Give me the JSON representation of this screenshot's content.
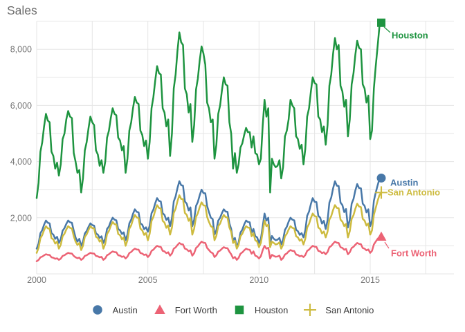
{
  "title": "Sales",
  "colors": {
    "austin": "#4878a8",
    "fort_worth": "#ec6375",
    "houston": "#1e9440",
    "san_antonio": "#cdbb3f",
    "grid": "#e5e5e5",
    "axis_text": "#757575",
    "title_text": "#6f6f6f",
    "legend_text": "#3a3a3a"
  },
  "axes": {
    "y_tick_labels": [
      "2,000",
      "4,000",
      "6,000",
      "8,000"
    ],
    "y_tick_values": [
      2000,
      4000,
      6000,
      8000
    ],
    "x_tick_labels": [
      "2000",
      "2005",
      "2010",
      "2015"
    ],
    "x_tick_values": [
      2000,
      2005,
      2010,
      2015
    ]
  },
  "legend": [
    {
      "key": "austin",
      "label": "Austin",
      "shape": "circle",
      "color": "#4878a8"
    },
    {
      "key": "fort_worth",
      "label": "Fort Worth",
      "shape": "triangle",
      "color": "#ec6375"
    },
    {
      "key": "houston",
      "label": "Houston",
      "shape": "square",
      "color": "#1e9440"
    },
    {
      "key": "san_antonio",
      "label": "San Antonio",
      "shape": "plus",
      "color": "#cdbb3f"
    }
  ],
  "chart_data": {
    "type": "line",
    "title": "Sales",
    "xlabel": "",
    "ylabel": "Sales",
    "x_start": "2000-01",
    "x_end": "2015-07",
    "x_interval": "month",
    "n_points": 187,
    "xlim": [
      2000,
      2017.5
    ],
    "ylim": [
      0,
      9000
    ],
    "x_grid_step_years": 2.5,
    "y_grid_step": 1000,
    "grid": true,
    "legend_position": "bottom",
    "series": [
      {
        "key": "austin",
        "name": "Austin",
        "marker": "circle",
        "color": "#4878a8",
        "values": [
          900,
          1080,
          1450,
          1560,
          1750,
          1900,
          1820,
          1800,
          1450,
          1400,
          1250,
          1320,
          1100,
          1240,
          1540,
          1630,
          1780,
          1900,
          1840,
          1820,
          1540,
          1300,
          1150,
          1250,
          1000,
          1150,
          1440,
          1530,
          1680,
          1800,
          1740,
          1720,
          1440,
          1400,
          1280,
          1340,
          1100,
          1260,
          1600,
          1690,
          1870,
          2000,
          1930,
          1910,
          1600,
          1550,
          1420,
          1480,
          1200,
          1400,
          1800,
          1930,
          2140,
          2300,
          2210,
          2190,
          1800,
          1750,
          1590,
          1660,
          1500,
          1720,
          2160,
          2290,
          2520,
          2700,
          2600,
          2580,
          2160,
          2100,
          1920,
          2000,
          1700,
          1990,
          2580,
          2760,
          3060,
          3300,
          3160,
          3140,
          2580,
          2500,
          2260,
          2370,
          1700,
          1930,
          2420,
          2560,
          2800,
          3000,
          2880,
          2870,
          2420,
          2200,
          2000,
          1950,
          1400,
          1560,
          1900,
          2000,
          2170,
          2300,
          2220,
          2210,
          1800,
          1600,
          1200,
          1280,
          950,
          1120,
          1470,
          1580,
          1760,
          1900,
          1850,
          1840,
          1470,
          1600,
          1350,
          1300,
          1100,
          1250,
          1700,
          2150,
          1900,
          2000,
          1100,
          1350,
          1250,
          1200,
          1220,
          1280,
          1050,
          1220,
          1570,
          1680,
          1860,
          2000,
          1930,
          1910,
          1570,
          1520,
          1390,
          1450,
          1300,
          1550,
          2070,
          2220,
          2490,
          2700,
          2570,
          2560,
          2070,
          2000,
          1790,
          1890,
          1600,
          1910,
          2540,
          2720,
          3050,
          3300,
          3140,
          3130,
          2540,
          2450,
          2200,
          2310,
          1650,
          1930,
          2500,
          2670,
          2970,
          3200,
          3060,
          3050,
          2500,
          2420,
          2190,
          2300,
          1700,
          1900,
          2600,
          2900,
          3150,
          3380,
          3413
        ]
      },
      {
        "key": "fort_worth",
        "name": "Fort Worth",
        "marker": "triangle",
        "color": "#ec6375",
        "values": [
          450,
          495,
          590,
          615,
          660,
          700,
          680,
          675,
          590,
          575,
          540,
          555,
          500,
          545,
          640,
          665,
          710,
          750,
          730,
          725,
          640,
          590,
          560,
          580,
          500,
          545,
          640,
          665,
          710,
          750,
          730,
          725,
          640,
          625,
          590,
          605,
          500,
          555,
          665,
          700,
          755,
          800,
          775,
          770,
          665,
          650,
          605,
          625,
          550,
          615,
          745,
          780,
          850,
          900,
          870,
          865,
          745,
          725,
          675,
          695,
          600,
          670,
          820,
          865,
          940,
          1000,
          970,
          960,
          820,
          800,
          740,
          770,
          650,
          730,
          900,
          945,
          1030,
          1100,
          1060,
          1050,
          900,
          875,
          810,
          840,
          650,
          740,
          925,
          980,
          1075,
          1150,
          1110,
          1100,
          925,
          850,
          770,
          740,
          600,
          665,
          795,
          830,
          900,
          950,
          920,
          915,
          790,
          700,
          560,
          600,
          500,
          570,
          720,
          765,
          840,
          900,
          870,
          860,
          720,
          800,
          650,
          620,
          550,
          630,
          850,
          1000,
          900,
          930,
          550,
          680,
          640,
          610,
          620,
          650,
          500,
          565,
          690,
          730,
          800,
          850,
          820,
          815,
          690,
          675,
          625,
          645,
          600,
          670,
          820,
          865,
          940,
          1000,
          970,
          960,
          820,
          800,
          740,
          770,
          700,
          780,
          950,
          995,
          1080,
          1150,
          1110,
          1100,
          950,
          925,
          860,
          890,
          700,
          770,
          920,
          965,
          1040,
          1100,
          1070,
          1060,
          920,
          900,
          840,
          870,
          750,
          820,
          1050,
          1150,
          1250,
          1310,
          1324
        ]
      },
      {
        "key": "houston",
        "name": "Houston",
        "marker": "square",
        "color": "#1e9440",
        "values": [
          2700,
          3240,
          4350,
          4680,
          5250,
          5700,
          5460,
          5400,
          4350,
          4200,
          3750,
          3960,
          3500,
          3900,
          4800,
          5000,
          5500,
          5800,
          5600,
          5550,
          4300,
          4000,
          3600,
          3700,
          2900,
          3400,
          4400,
          4700,
          5200,
          5600,
          5400,
          5300,
          4400,
          4250,
          3850,
          4050,
          3600,
          4000,
          4850,
          5100,
          5550,
          5900,
          5700,
          5650,
          4850,
          4750,
          4400,
          4550,
          3600,
          4100,
          5100,
          5400,
          5900,
          6300,
          6100,
          6050,
          5100,
          4950,
          4550,
          4750,
          4100,
          4700,
          5900,
          6300,
          6900,
          7400,
          7150,
          7100,
          5900,
          5750,
          5250,
          5500,
          4200,
          5000,
          6600,
          7100,
          7950,
          8600,
          8250,
          8150,
          6600,
          6400,
          5750,
          6050,
          4700,
          5300,
          6570,
          6950,
          7600,
          8100,
          7850,
          7450,
          6100,
          5900,
          5400,
          5500,
          4100,
          4600,
          5700,
          6000,
          6550,
          7000,
          6750,
          6700,
          5400,
          5000,
          3750,
          4300,
          3600,
          3900,
          4500,
          4650,
          4950,
          5200,
          5050,
          5050,
          4500,
          4900,
          4300,
          4250,
          3900,
          4100,
          5300,
          6200,
          5600,
          5900,
          2900,
          4100,
          3900,
          3800,
          3850,
          4050,
          3400,
          3800,
          4900,
          5100,
          5500,
          6200,
          6000,
          5900,
          4900,
          4800,
          4450,
          4600,
          3900,
          4450,
          5600,
          5900,
          6500,
          7000,
          6800,
          6750,
          5600,
          5500,
          5050,
          5250,
          4600,
          5300,
          6700,
          7100,
          7850,
          8400,
          8000,
          8150,
          6700,
          6500,
          5950,
          6200,
          4900,
          5500,
          6750,
          7150,
          7800,
          8300,
          8050,
          8000,
          6750,
          6600,
          6100,
          6350,
          4800,
          5100,
          6600,
          7400,
          8100,
          8800,
          8945
        ]
      },
      {
        "key": "san_antonio",
        "name": "San Antonio",
        "marker": "plus",
        "color": "#cdbb3f",
        "values": [
          750,
          920,
          1270,
          1380,
          1560,
          1700,
          1620,
          1610,
          1270,
          1230,
          1080,
          1150,
          900,
          1040,
          1340,
          1430,
          1580,
          1700,
          1640,
          1620,
          1340,
          1150,
          1030,
          1100,
          850,
          1000,
          1320,
          1410,
          1570,
          1700,
          1630,
          1620,
          1320,
          1280,
          1150,
          1210,
          900,
          1070,
          1420,
          1530,
          1710,
          1850,
          1770,
          1760,
          1420,
          1380,
          1230,
          1300,
          1000,
          1200,
          1610,
          1730,
          1940,
          2100,
          2010,
          1990,
          1610,
          1550,
          1390,
          1460,
          1200,
          1430,
          1890,
          2030,
          2260,
          2450,
          2350,
          2330,
          1890,
          1830,
          1640,
          1730,
          1400,
          1650,
          2170,
          2320,
          2590,
          2800,
          2670,
          2660,
          2170,
          2100,
          1890,
          1990,
          1400,
          1610,
          2030,
          2160,
          2380,
          2550,
          2440,
          2430,
          2030,
          1850,
          1700,
          1650,
          1200,
          1360,
          1700,
          1790,
          1970,
          2100,
          2020,
          2010,
          1650,
          1500,
          1100,
          1180,
          900,
          1040,
          1340,
          1430,
          1580,
          1700,
          1650,
          1640,
          1340,
          1450,
          1200,
          1150,
          950,
          1100,
          1500,
          1900,
          1700,
          1750,
          950,
          1150,
          1100,
          1050,
          1070,
          1120,
          900,
          1040,
          1340,
          1430,
          1580,
          1700,
          1640,
          1620,
          1340,
          1300,
          1180,
          1240,
          1050,
          1250,
          1650,
          1780,
          1990,
          2150,
          2060,
          2040,
          1650,
          1600,
          1440,
          1510,
          1300,
          1510,
          1930,
          2060,
          2280,
          2450,
          2350,
          2340,
          1930,
          1860,
          1700,
          1780,
          1300,
          1520,
          1960,
          2090,
          2320,
          2500,
          2400,
          2380,
          1960,
          1900,
          1720,
          1800,
          1400,
          1550,
          2100,
          2350,
          2600,
          2800,
          2897
        ]
      }
    ]
  }
}
